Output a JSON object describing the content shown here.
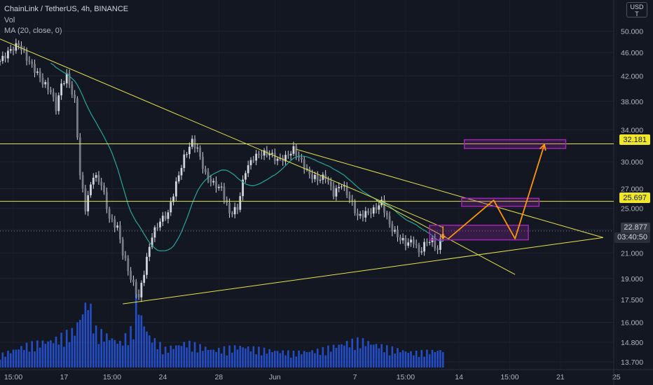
{
  "legend": {
    "symbol_line": "ChainLink / TetherUS, 4h, BINANCE",
    "volume_label": "Vol",
    "ma_label": "MA (20, close, 0)"
  },
  "currency": {
    "top": "USD",
    "bottom": "T"
  },
  "price_tags": {
    "level_upper": "32.181",
    "level_lower": "25.697",
    "last_price": "22.877",
    "countdown": "03:40:50"
  },
  "colors": {
    "background": "#131722",
    "candle": "#d1d4dc",
    "ma": "#26a69a",
    "volume": "#2962ff",
    "trendline": "#e8e24a",
    "projection": "#ff9800",
    "zone": "#9c27b0"
  },
  "chart_data": {
    "type": "candlestick",
    "title": "ChainLink / TetherUS, 4h, BINANCE",
    "scale": "log",
    "ylim": [
      13.3,
      56.5
    ],
    "y_ticks": [
      "50.000",
      "46.000",
      "42.000",
      "38.000",
      "34.000",
      "30.000",
      "27.000",
      "25.000",
      "23.000",
      "21.000",
      "19.000",
      "17.500",
      "16.000",
      "14.800",
      "13.700"
    ],
    "x_ticks": [
      "15:00",
      "17",
      "15:00",
      "24",
      "28",
      "Jun",
      "7",
      "15:00",
      "14",
      "15:00",
      "21",
      "25"
    ],
    "price_path": [
      [
        0,
        44.5
      ],
      [
        4,
        46.5
      ],
      [
        7,
        47.5
      ],
      [
        10,
        45.0
      ],
      [
        13,
        43.0
      ],
      [
        16,
        41.0
      ],
      [
        19,
        39.5
      ],
      [
        21,
        37.0
      ],
      [
        23,
        40.5
      ],
      [
        25,
        42.0
      ],
      [
        28,
        38.0
      ],
      [
        30,
        28.5
      ],
      [
        32,
        25.0
      ],
      [
        35,
        28.5
      ],
      [
        38,
        27.5
      ],
      [
        41,
        24.0
      ],
      [
        44,
        23.2
      ],
      [
        46,
        21.0
      ],
      [
        49,
        19.0
      ],
      [
        52,
        17.6
      ],
      [
        54,
        19.5
      ],
      [
        57,
        22.5
      ],
      [
        60,
        23.8
      ],
      [
        63,
        24.5
      ],
      [
        66,
        27.5
      ],
      [
        69,
        30.5
      ],
      [
        72,
        32.5
      ],
      [
        74,
        31.5
      ],
      [
        77,
        28.5
      ],
      [
        80,
        27.5
      ],
      [
        83,
        27.0
      ],
      [
        86,
        24.5
      ],
      [
        89,
        25.0
      ],
      [
        92,
        29.0
      ],
      [
        95,
        30.5
      ],
      [
        98,
        31.0
      ],
      [
        101,
        31.0
      ],
      [
        104,
        30.2
      ],
      [
        107,
        30.5
      ],
      [
        110,
        31.5
      ],
      [
        113,
        30.0
      ],
      [
        116,
        28.5
      ],
      [
        119,
        28.0
      ],
      [
        122,
        28.3
      ],
      [
        125,
        26.5
      ],
      [
        128,
        27.5
      ],
      [
        131,
        26.0
      ],
      [
        134,
        24.2
      ],
      [
        137,
        24.5
      ],
      [
        140,
        24.8
      ],
      [
        143,
        25.6
      ],
      [
        146,
        23.4
      ],
      [
        149,
        22.4
      ],
      [
        152,
        21.8
      ],
      [
        155,
        22.0
      ],
      [
        157,
        21.0
      ],
      [
        160,
        22.0
      ],
      [
        162,
        22.0
      ],
      [
        164,
        21.2
      ],
      [
        166,
        22.9
      ]
    ],
    "volume_profile": [
      [
        0,
        0.1
      ],
      [
        10,
        0.18
      ],
      [
        20,
        0.22
      ],
      [
        28,
        0.3
      ],
      [
        33,
        0.55
      ],
      [
        36,
        0.3
      ],
      [
        45,
        0.2
      ],
      [
        50,
        0.32
      ],
      [
        51,
        0.62
      ],
      [
        53,
        0.4
      ],
      [
        56,
        0.25
      ],
      [
        62,
        0.15
      ],
      [
        70,
        0.2
      ],
      [
        80,
        0.14
      ],
      [
        90,
        0.17
      ],
      [
        100,
        0.14
      ],
      [
        110,
        0.12
      ],
      [
        120,
        0.14
      ],
      [
        130,
        0.2
      ],
      [
        135,
        0.22
      ],
      [
        145,
        0.16
      ],
      [
        155,
        0.12
      ],
      [
        166,
        0.14
      ]
    ],
    "horizontal_levels": [
      32.181,
      25.697
    ],
    "current_price": 22.877,
    "trendlines": [
      {
        "x1": 0,
        "y1": 48.5,
        "x2": 166,
        "y2": 23.2
      },
      {
        "x1": 111,
        "y1": 31.5,
        "x2": 226,
        "y2": 22.3
      },
      {
        "x1": 46,
        "y1": 17.2,
        "x2": 226,
        "y2": 22.3
      },
      {
        "x1": 141,
        "y1": 25.8,
        "x2": 193,
        "y2": 19.3
      }
    ],
    "projection_path": [
      [
        168,
        22.2
      ],
      [
        185,
        25.8
      ],
      [
        193,
        22.2
      ],
      [
        204,
        32.1
      ]
    ],
    "projection_down_arrow": [
      [
        166,
        23.3
      ],
      [
        166,
        22.2
      ]
    ],
    "zones": [
      {
        "x1": 161,
        "x2": 198,
        "y1": 22.1,
        "y2": 23.4
      },
      {
        "x1": 173,
        "x2": 202,
        "y1": 25.2,
        "y2": 26.0
      },
      {
        "x1": 174,
        "x2": 212,
        "y1": 31.6,
        "y2": 32.7
      }
    ]
  }
}
